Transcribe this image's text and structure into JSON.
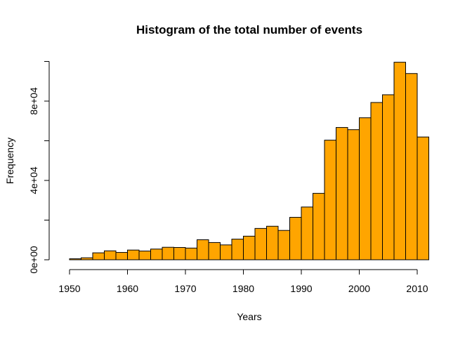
{
  "chart_data": {
    "type": "bar",
    "title": "Histogram of the total number of events",
    "xlabel": "Years",
    "ylabel": "Frequency",
    "bar_color": "#FFA500",
    "bin_edges": [
      1950,
      1952,
      1954,
      1956,
      1958,
      1960,
      1962,
      1964,
      1966,
      1968,
      1970,
      1972,
      1974,
      1976,
      1978,
      1980,
      1982,
      1984,
      1986,
      1988,
      1990,
      1992,
      1994,
      1996,
      1998,
      2000,
      2002,
      2004,
      2006,
      2008,
      2010,
      2012
    ],
    "values": [
      500,
      1000,
      3500,
      4500,
      3700,
      4900,
      4400,
      5400,
      6300,
      6200,
      5900,
      10100,
      8700,
      7500,
      10400,
      11900,
      15800,
      16900,
      14800,
      21400,
      26600,
      33500,
      60300,
      66700,
      65600,
      71600,
      79300,
      83200,
      99600,
      93900,
      61900
    ],
    "xlim": [
      1950,
      2012
    ],
    "ylim": [
      0,
      100000
    ],
    "x_ticks": [
      1950,
      1960,
      1970,
      1980,
      1990,
      2000,
      2010
    ],
    "x_tick_labels": [
      "1950",
      "1960",
      "1970",
      "1980",
      "1990",
      "2000",
      "2010"
    ],
    "y_ticks": [
      0,
      40000,
      80000
    ],
    "y_tick_labels": [
      "0e+00",
      "4e+04",
      "8e+04"
    ],
    "y_minor_ticks": [
      20000,
      60000,
      100000
    ],
    "grid": false
  }
}
